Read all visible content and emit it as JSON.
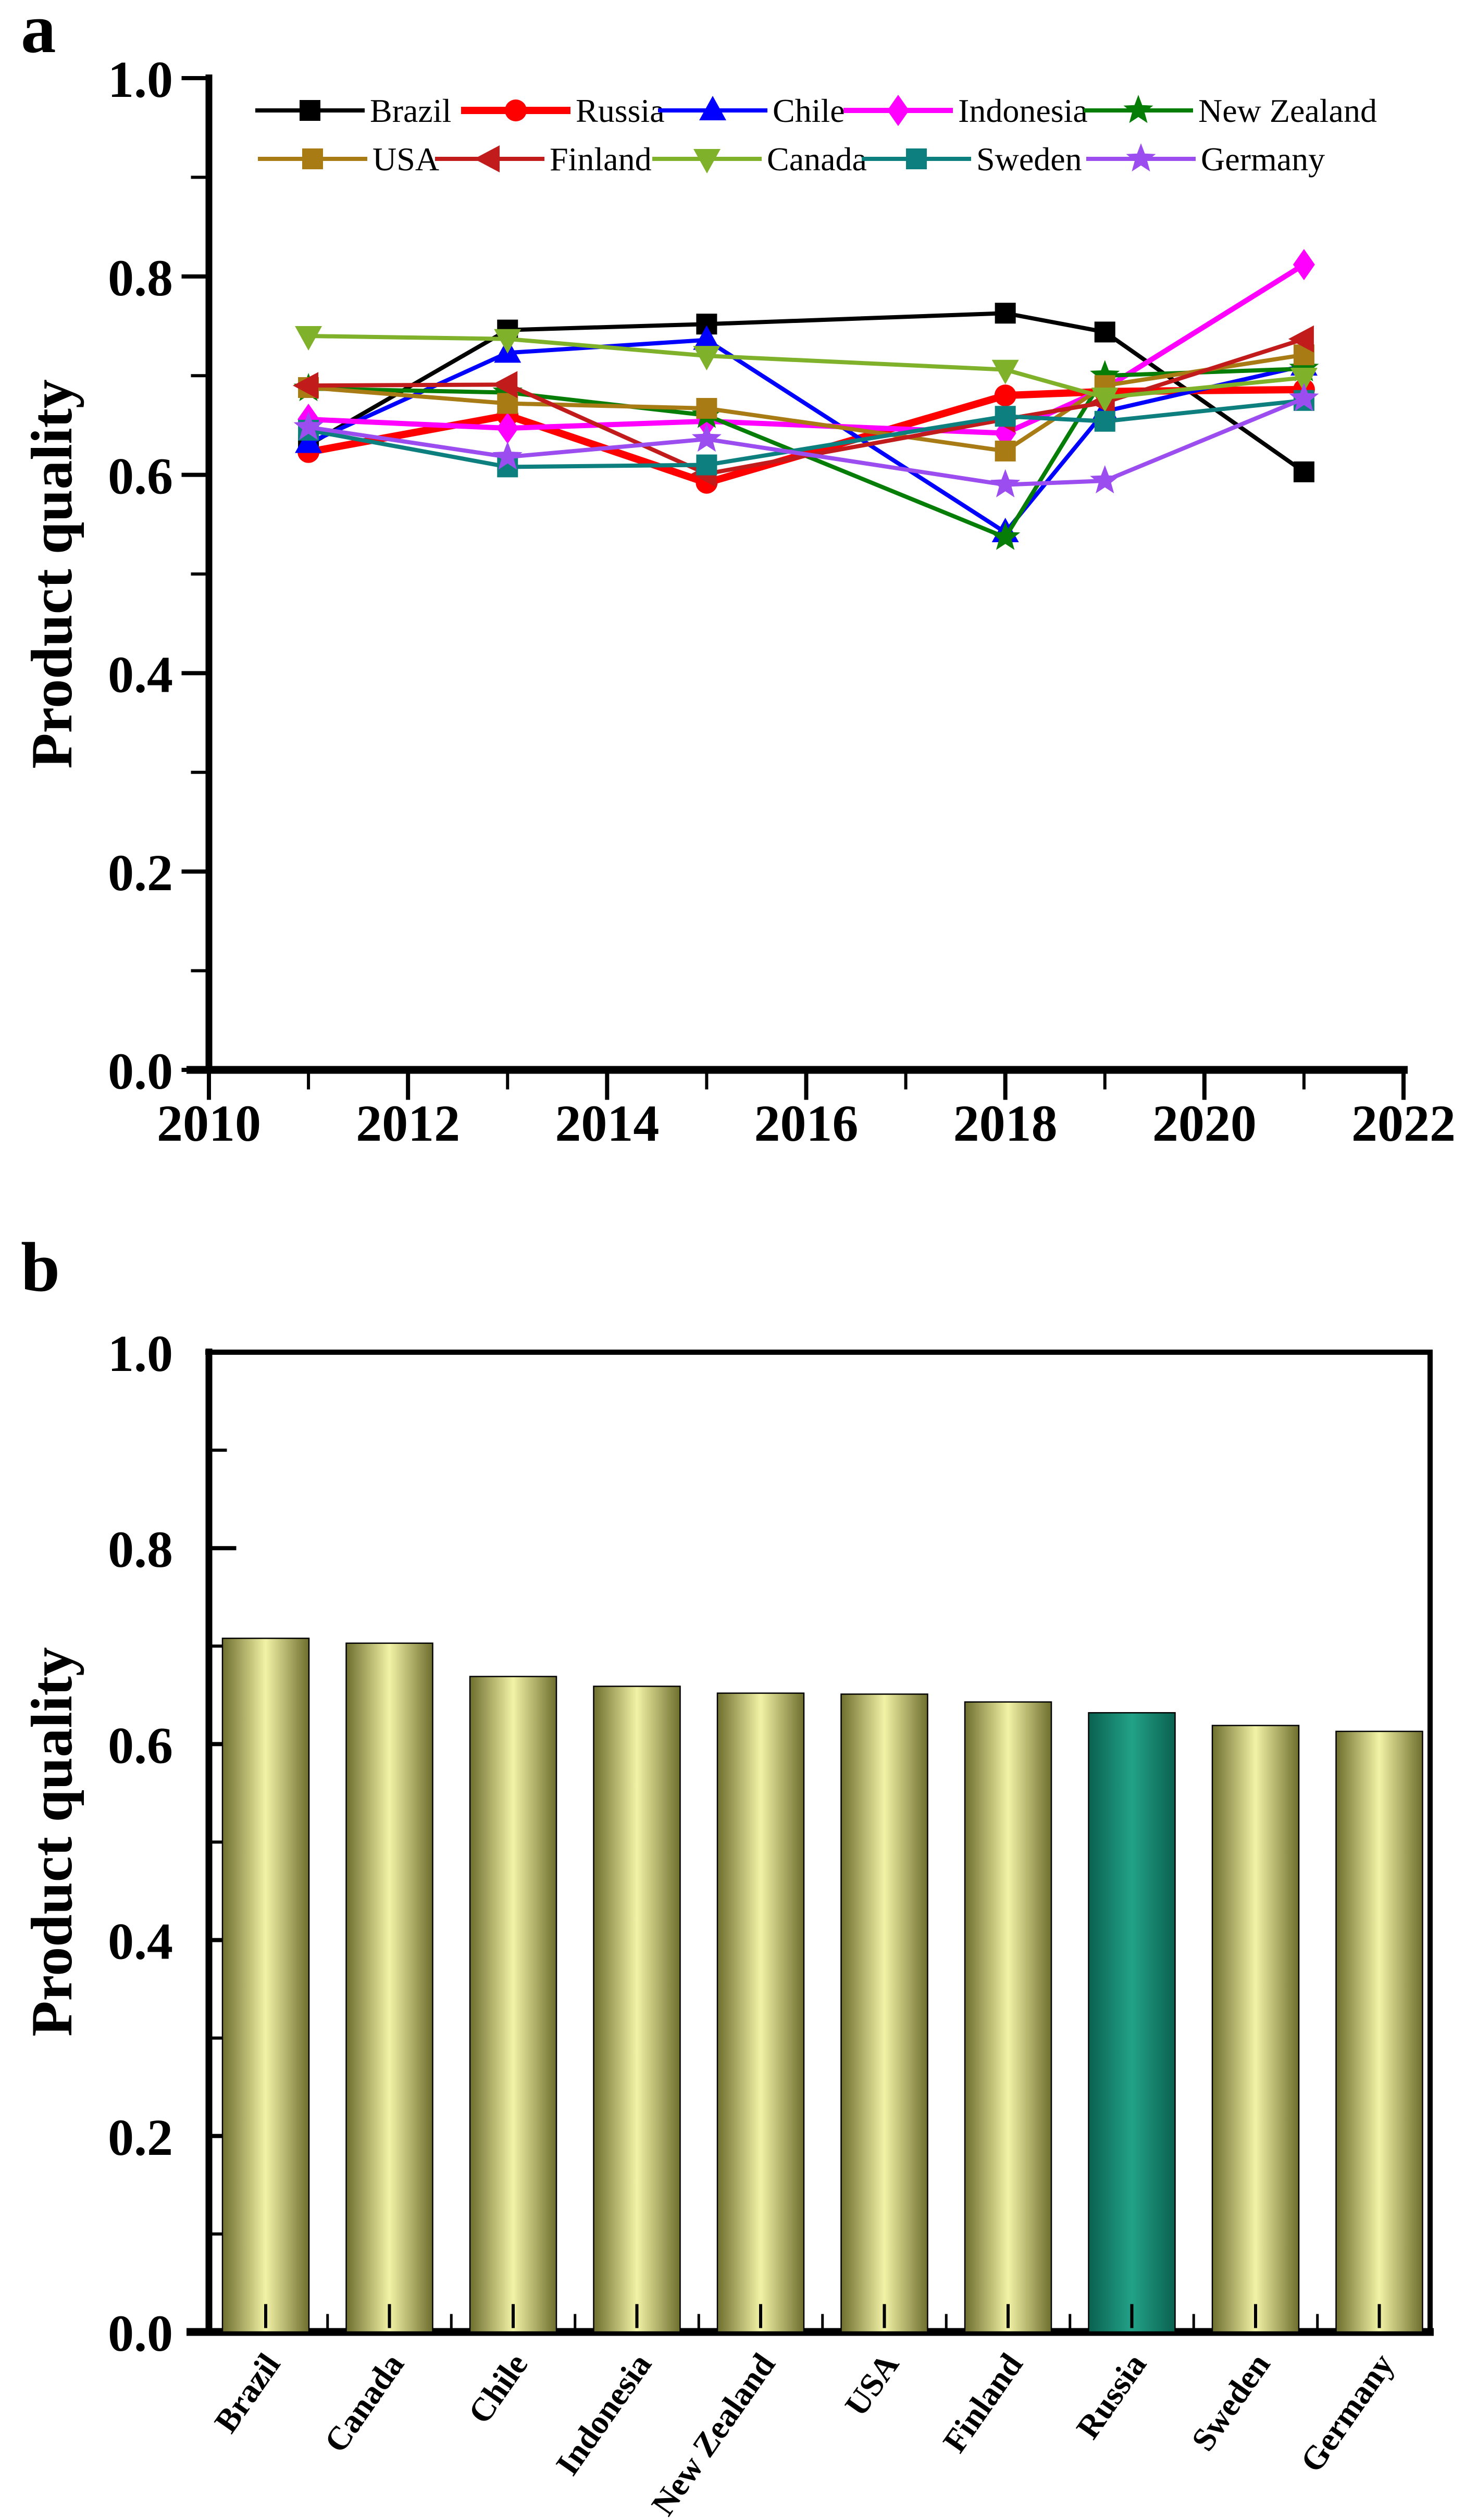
{
  "figure": {
    "panel_a_label": "a",
    "panel_b_label": "b"
  },
  "chart_data": [
    {
      "type": "line",
      "title": "",
      "xlabel": "",
      "ylabel": "Product quality",
      "x": [
        2011,
        2013,
        2015,
        2018,
        2019,
        2021
      ],
      "xlim": [
        2010,
        2022
      ],
      "ylim": [
        0.0,
        1.0
      ],
      "x_major_ticks": [
        2010,
        2012,
        2014,
        2016,
        2018,
        2020,
        2022
      ],
      "x_tick_labels": [
        "2010",
        "2012",
        "2014",
        "2016",
        "2018",
        "2020",
        "2022"
      ],
      "x_minor_ticks": [
        2011,
        2013,
        2015,
        2017,
        2019,
        2021
      ],
      "y_major_ticks": [
        0.0,
        0.2,
        0.4,
        0.6,
        0.8,
        1.0
      ],
      "y_tick_labels": [
        "0.0",
        "0.2",
        "0.4",
        "0.6",
        "0.8",
        "1.0"
      ],
      "y_minor_step": 0.1,
      "grid": false,
      "legend_position": "top-inside-two-rows",
      "series": [
        {
          "name": "Brazil",
          "color": "#000000",
          "marker": "square",
          "line_width": 8,
          "values": [
            0.63,
            0.746,
            0.752,
            0.763,
            0.744,
            0.603
          ]
        },
        {
          "name": "Russia",
          "color": "#ff0000",
          "marker": "circle",
          "line_width": 14,
          "values": [
            0.623,
            0.66,
            0.592,
            0.68,
            0.684,
            0.686
          ]
        },
        {
          "name": "Chile",
          "color": "#0000ff",
          "marker": "triangle-up",
          "line_width": 8,
          "values": [
            0.632,
            0.723,
            0.736,
            0.542,
            0.664,
            0.71
          ]
        },
        {
          "name": "Indonesia",
          "color": "#ff00ff",
          "marker": "diamond",
          "line_width": 10,
          "values": [
            0.656,
            0.647,
            0.654,
            0.642,
            0.687,
            0.812
          ]
        },
        {
          "name": "New Zealand",
          "color": "#067d06",
          "marker": "star",
          "line_width": 8,
          "values": [
            0.687,
            0.683,
            0.66,
            0.537,
            0.7,
            0.707
          ]
        },
        {
          "name": "USA",
          "color": "#a87b15",
          "marker": "square",
          "line_width": 8,
          "values": [
            0.688,
            0.672,
            0.667,
            0.624,
            0.69,
            0.721
          ]
        },
        {
          "name": "Finland",
          "color": "#c11b1b",
          "marker": "triangle-left",
          "line_width": 8,
          "values": [
            0.69,
            0.691,
            0.601,
            0.656,
            0.673,
            0.737
          ]
        },
        {
          "name": "Canada",
          "color": "#7fb22a",
          "marker": "triangle-down",
          "line_width": 8,
          "values": [
            0.74,
            0.737,
            0.72,
            0.706,
            0.678,
            0.698
          ]
        },
        {
          "name": "Sweden",
          "color": "#0d7f7f",
          "marker": "square",
          "line_width": 8,
          "values": [
            0.645,
            0.608,
            0.61,
            0.659,
            0.654,
            0.675
          ]
        },
        {
          "name": "Germany",
          "color": "#9c4df0",
          "marker": "star",
          "line_width": 8,
          "values": [
            0.648,
            0.618,
            0.636,
            0.59,
            0.594,
            0.677
          ]
        }
      ]
    },
    {
      "type": "bar",
      "title": "",
      "xlabel": "",
      "ylabel": "Product quality",
      "categories": [
        "Brazil",
        "Canada",
        "Chile",
        "Indonesia",
        "New Zealand",
        "USA",
        "Finland",
        "Russia",
        "Sweden",
        "Germany"
      ],
      "values": [
        0.708,
        0.703,
        0.669,
        0.659,
        0.652,
        0.651,
        0.643,
        0.632,
        0.619,
        0.613
      ],
      "ylim": [
        0.0,
        1.0
      ],
      "y_major_ticks": [
        0.0,
        0.2,
        0.4,
        0.6,
        0.8,
        1.0
      ],
      "y_tick_labels": [
        "0.0",
        "0.2",
        "0.4",
        "0.6",
        "0.8",
        "1.0"
      ],
      "y_minor_step": 0.1,
      "grid": false,
      "box": true,
      "category_label_rotation_deg": -55,
      "highlight_category": "Russia",
      "bar_fill": {
        "edge": "#6e6e2e",
        "center": "#f2f3a6"
      },
      "highlight_fill": {
        "edge": "#0a6150",
        "center": "#22a287"
      }
    }
  ]
}
